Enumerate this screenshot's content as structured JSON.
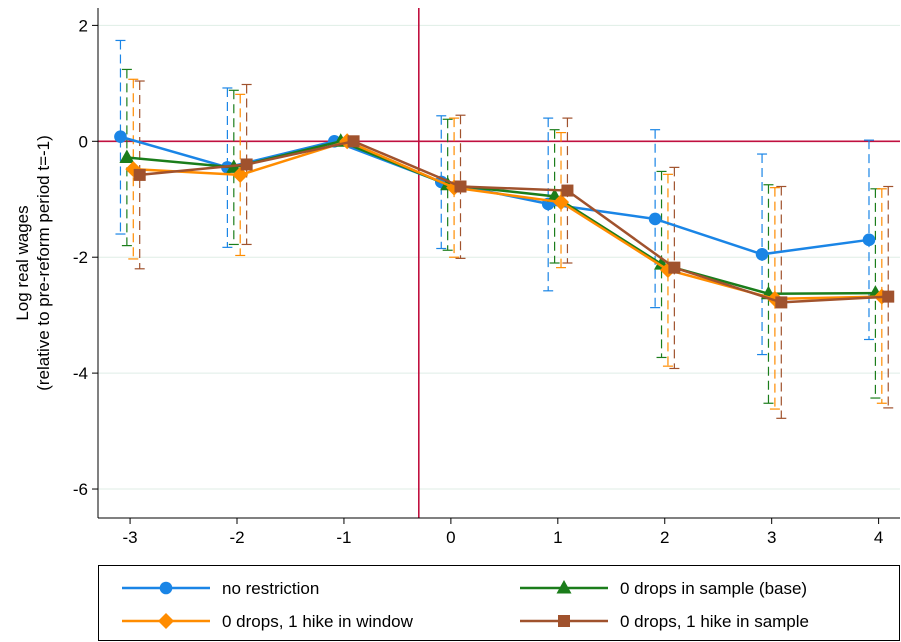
{
  "chart_data": {
    "type": "line",
    "title": "",
    "xlabel": "",
    "ylabel_lines": [
      "Log real wages",
      "(relative to pre-reform period t=-1)"
    ],
    "x": [
      -3,
      -2,
      -1,
      0,
      1,
      2,
      3,
      4
    ],
    "x_tick_labels": [
      "-3",
      "-2",
      "-1",
      "0",
      "1",
      "2",
      "3",
      "4"
    ],
    "y_ticks": [
      2,
      0,
      -2,
      -4,
      -6
    ],
    "y_tick_labels": [
      "2",
      "0",
      "-2",
      "-4",
      "-6"
    ],
    "xlim": [
      -3.3,
      4.2
    ],
    "ylim": [
      -6.5,
      2.3
    ],
    "reference_lines": {
      "horizontal_y": 0,
      "vertical_x": -0.3,
      "color": "#c0103f"
    },
    "grid": {
      "horizontal": true,
      "color": "#dfeee6"
    },
    "series": [
      {
        "name": "no restriction",
        "color": "#1a85e6",
        "marker": "circle",
        "x_offset": -0.09,
        "values": [
          0.08,
          -0.45,
          0.0,
          -0.7,
          -1.08,
          -1.34,
          -1.95,
          -1.7
        ],
        "ci_low": [
          -1.6,
          -1.83,
          0.0,
          -1.85,
          -2.58,
          -2.87,
          -3.68,
          -3.42
        ],
        "ci_high": [
          1.74,
          0.92,
          0.0,
          0.44,
          0.4,
          0.2,
          -0.22,
          0.02
        ]
      },
      {
        "name": "0 drops in sample (base)",
        "color": "#1b7d1b",
        "marker": "triangle",
        "x_offset": -0.03,
        "values": [
          -0.28,
          -0.45,
          0.0,
          -0.75,
          -0.95,
          -2.12,
          -2.63,
          -2.62
        ],
        "ci_low": [
          -1.8,
          -1.78,
          0.0,
          -1.88,
          -2.1,
          -3.73,
          -4.52,
          -4.43
        ],
        "ci_high": [
          1.24,
          0.88,
          0.0,
          0.38,
          0.2,
          -0.52,
          -0.75,
          -0.82
        ]
      },
      {
        "name": "0 drops, 1 hike in window",
        "color": "#ff8c00",
        "marker": "diamond",
        "x_offset": 0.03,
        "values": [
          -0.48,
          -0.58,
          0.0,
          -0.8,
          -1.05,
          -2.22,
          -2.72,
          -2.68
        ],
        "ci_low": [
          -2.03,
          -1.97,
          0.0,
          -2.0,
          -2.18,
          -3.88,
          -4.62,
          -4.52
        ],
        "ci_high": [
          1.07,
          0.81,
          0.0,
          0.4,
          0.15,
          -0.57,
          -0.8,
          -0.82
        ]
      },
      {
        "name": "0 drops, 1 hike in sample",
        "color": "#a0522d",
        "marker": "square",
        "x_offset": 0.09,
        "values": [
          -0.58,
          -0.4,
          0.0,
          -0.78,
          -0.85,
          -2.18,
          -2.78,
          -2.68
        ],
        "ci_low": [
          -2.2,
          -1.78,
          0.0,
          -2.02,
          -2.1,
          -3.92,
          -4.78,
          -4.6
        ],
        "ci_high": [
          1.04,
          0.98,
          0.0,
          0.45,
          0.4,
          -0.45,
          -0.78,
          -0.78
        ]
      }
    ],
    "legend": {
      "placement": "bottom",
      "columns": 2,
      "order": [
        "no restriction",
        "0 drops in sample (base)",
        "0 drops, 1 hike in window",
        "0 drops, 1 hike in sample"
      ]
    }
  }
}
